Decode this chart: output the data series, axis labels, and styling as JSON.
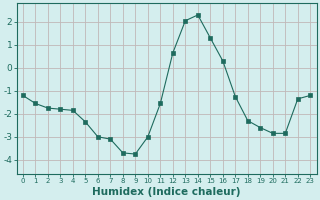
{
  "x": [
    0,
    1,
    2,
    3,
    4,
    5,
    6,
    7,
    8,
    9,
    10,
    11,
    12,
    13,
    14,
    15,
    16,
    17,
    18,
    19,
    20,
    21,
    22,
    23
  ],
  "y": [
    -1.2,
    -1.55,
    -1.75,
    -1.8,
    -1.85,
    -2.35,
    -3.0,
    -3.1,
    -3.7,
    -3.75,
    -3.0,
    -1.55,
    0.65,
    2.05,
    2.3,
    1.3,
    0.3,
    -1.25,
    -2.3,
    -2.6,
    -2.85,
    -2.85,
    -1.35,
    -1.2
  ],
  "line_color": "#1e6b5e",
  "marker": "s",
  "marker_size": 2.5,
  "bg_color": "#d4eeee",
  "grid_color": "#c0b8b8",
  "tick_color": "#1e6b5e",
  "xlabel": "Humidex (Indice chaleur)",
  "xlabel_fontsize": 7.5,
  "ylabel_ticks": [
    -4,
    -3,
    -2,
    -1,
    0,
    1,
    2
  ],
  "xlim": [
    -0.5,
    23.5
  ],
  "ylim": [
    -4.6,
    2.8
  ],
  "spine_color": "#1e6b5e",
  "figw": 3.2,
  "figh": 2.0,
  "dpi": 100
}
